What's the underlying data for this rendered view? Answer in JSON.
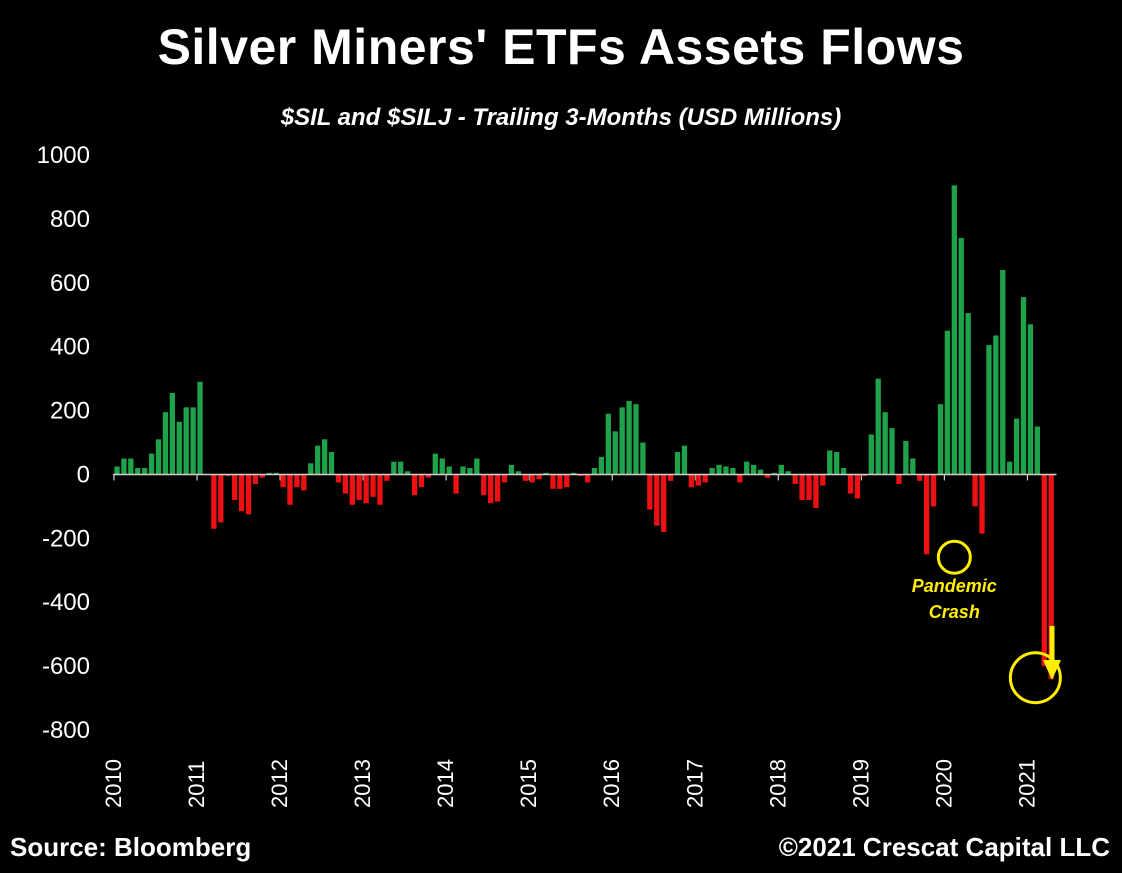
{
  "chart_data": {
    "type": "bar",
    "title": "Silver Miners' ETFs Assets Flows",
    "subtitle": "$SIL and $SILJ - Trailing 3-Months  (USD Millions)",
    "xlabel": "",
    "ylabel": "",
    "ylim": [
      -800,
      1000
    ],
    "yticks": [
      "1000",
      "800",
      "600",
      "400",
      "200",
      "0",
      "-200",
      "-400",
      "-600",
      "-800"
    ],
    "x_labels": [
      "2010",
      "2011",
      "2012",
      "2013",
      "2014",
      "2015",
      "2016",
      "2017",
      "2018",
      "2019",
      "2020",
      "2021"
    ],
    "start": "2010-01",
    "frequency": "monthly",
    "positive_color": "#1fa34a",
    "negative_color": "#ee1111",
    "values": [
      25,
      50,
      50,
      20,
      20,
      65,
      110,
      195,
      255,
      165,
      210,
      210,
      290,
      -2,
      -170,
      -150,
      -5,
      -80,
      -115,
      -125,
      -30,
      -10,
      5,
      5,
      -40,
      -95,
      -40,
      -50,
      35,
      90,
      110,
      70,
      -25,
      -60,
      -95,
      -80,
      -90,
      -70,
      -95,
      -20,
      40,
      40,
      10,
      -65,
      -40,
      -10,
      65,
      50,
      25,
      -60,
      25,
      20,
      50,
      -65,
      -90,
      -85,
      -25,
      30,
      10,
      -20,
      -25,
      -15,
      5,
      -45,
      -45,
      -40,
      5,
      -5,
      -25,
      20,
      55,
      190,
      135,
      210,
      230,
      220,
      100,
      -110,
      -160,
      -180,
      -20,
      70,
      90,
      -40,
      -35,
      -25,
      20,
      30,
      25,
      20,
      -25,
      40,
      30,
      15,
      -10,
      5,
      30,
      10,
      -30,
      -80,
      -80,
      -105,
      -35,
      75,
      70,
      20,
      -60,
      -75,
      -5,
      125,
      300,
      195,
      145,
      -30,
      105,
      50,
      -20,
      -250,
      -100,
      220,
      450,
      905,
      740,
      505,
      -100,
      -185,
      405,
      435,
      640,
      40,
      175,
      555,
      470,
      150,
      -600,
      -640
    ],
    "annotations": [
      {
        "text_lines": [
          "Pandemic",
          "Crash"
        ],
        "index": 121,
        "value": -250
      },
      {
        "text_lines": [],
        "index": 133,
        "value": -630
      }
    ],
    "arrow": {
      "direction": "down",
      "color": "#ffee00"
    },
    "source": "Source: Bloomberg",
    "copyright": "©2021 Crescat Capital LLC"
  }
}
